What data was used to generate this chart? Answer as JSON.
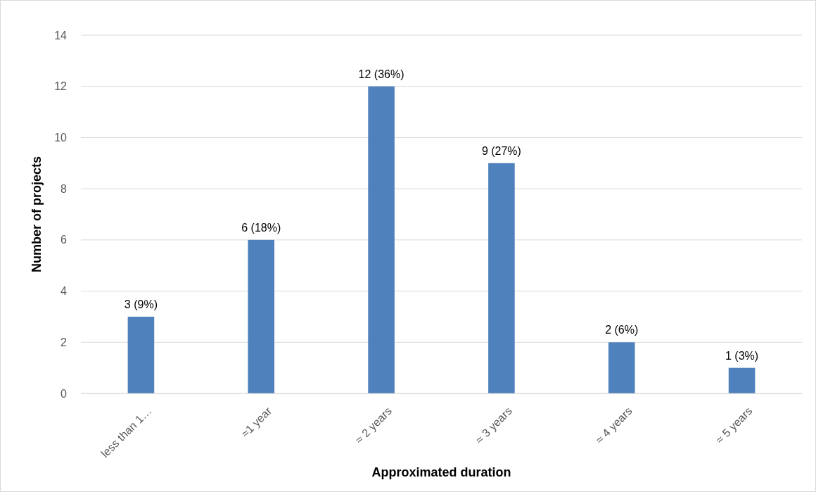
{
  "chart_data": {
    "type": "bar",
    "xlabel": "Approximated duration",
    "ylabel": "Number of projects",
    "categories": [
      "less than 1…",
      "≈1 year",
      "≈ 2 years",
      "≈ 3 years",
      "≈ 4 years",
      "≈ 5 years"
    ],
    "values": [
      3,
      6,
      12,
      9,
      2,
      1
    ],
    "color": "#4f81bd",
    "value_labels": [
      "3 (9%)",
      "6 (18%)",
      "12 (36%)",
      "9 (27%)",
      "2 (6%)",
      "1 (3%)"
    ],
    "ylim": [
      0,
      14
    ],
    "yticks": [
      0,
      2,
      4,
      6,
      8,
      10,
      12,
      14
    ],
    "grid": "y"
  }
}
